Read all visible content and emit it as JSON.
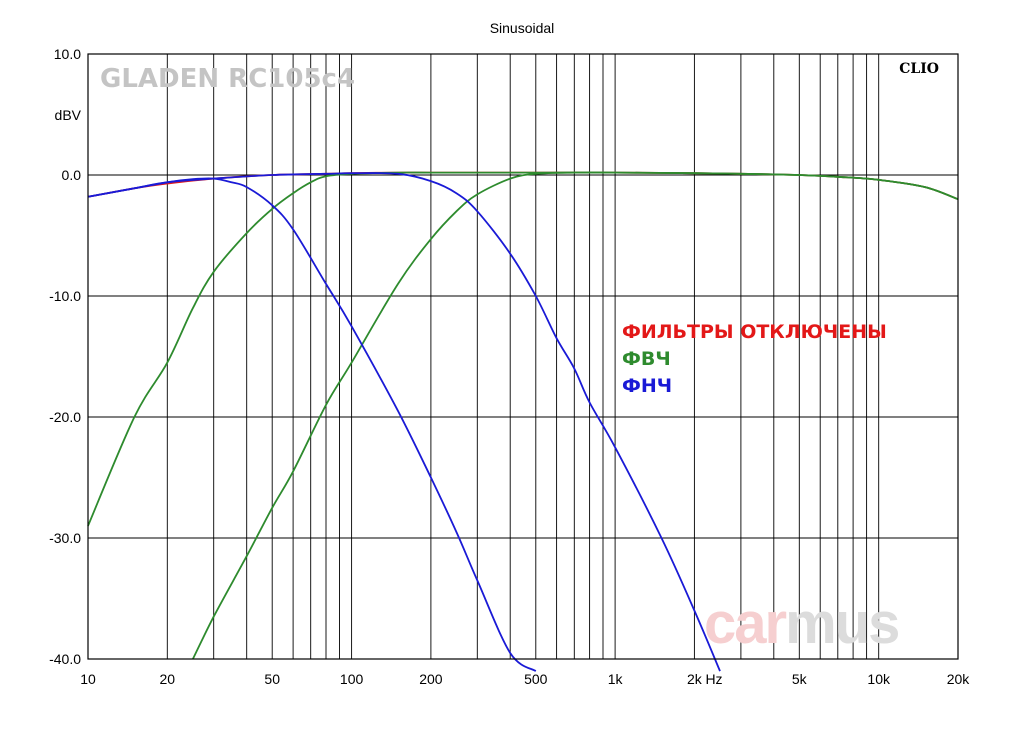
{
  "chart_data": {
    "type": "line",
    "title": "Sinusoidal",
    "ylabel": "dBV",
    "x_unit_label": "Hz",
    "x_scale": "log",
    "xlim": [
      10,
      20000
    ],
    "ylim": [
      -40,
      10
    ],
    "grid": true,
    "legend_placement": "middle-right",
    "y_ticks": [
      {
        "value": 10,
        "label": "10.0"
      },
      {
        "value": 0,
        "label": "0.0"
      },
      {
        "value": -10,
        "label": "-10.0"
      },
      {
        "value": -20,
        "label": "-20.0"
      },
      {
        "value": -30,
        "label": "-30.0"
      },
      {
        "value": -40,
        "label": "-40.0"
      }
    ],
    "x_ticks": [
      {
        "value": 10,
        "label": "10"
      },
      {
        "value": 20,
        "label": "20"
      },
      {
        "value": 50,
        "label": "50"
      },
      {
        "value": 100,
        "label": "100"
      },
      {
        "value": 200,
        "label": "200"
      },
      {
        "value": 500,
        "label": "500"
      },
      {
        "value": 1000,
        "label": "1k"
      },
      {
        "value": 2000,
        "label": "2k"
      },
      {
        "value": 5000,
        "label": "5k"
      },
      {
        "value": 10000,
        "label": "10k"
      },
      {
        "value": 20000,
        "label": "20k"
      }
    ],
    "x_gridlines": [
      20,
      30,
      40,
      50,
      60,
      70,
      80,
      90,
      100,
      200,
      300,
      400,
      500,
      600,
      700,
      800,
      900,
      1000,
      2000,
      3000,
      4000,
      5000,
      6000,
      7000,
      8000,
      9000,
      10000
    ],
    "series": [
      {
        "name": "ФИЛЬТРЫ ОТКЛЮЧЕНЫ",
        "color": "#e31818",
        "x": [
          10,
          15,
          20,
          30,
          50,
          80,
          100,
          150,
          200,
          300,
          500,
          1000,
          2000,
          3000,
          5000,
          7000,
          10000,
          15000,
          20000
        ],
        "y": [
          -1.8,
          -1.1,
          -0.7,
          -0.3,
          0.0,
          0.1,
          0.15,
          0.2,
          0.2,
          0.2,
          0.2,
          0.2,
          0.15,
          0.1,
          0.0,
          -0.15,
          -0.4,
          -1.0,
          -2.0
        ]
      },
      {
        "name": "ФВЧ",
        "color": "#2e8b2e",
        "x": [
          10,
          15,
          20,
          25,
          30,
          40,
          50,
          60,
          70,
          80,
          100,
          150,
          200,
          300,
          500,
          1000,
          2000,
          3000,
          5000,
          7000,
          10000,
          15000,
          20000
        ],
        "y": [
          -29,
          -20,
          -15.5,
          -11,
          -8,
          -4.8,
          -2.8,
          -1.5,
          -0.6,
          -0.1,
          0.1,
          0.2,
          0.2,
          0.2,
          0.2,
          0.2,
          0.15,
          0.1,
          0.0,
          -0.15,
          -0.4,
          -1.0,
          -2.0
        ]
      },
      {
        "name": "ФВЧ",
        "color": "#2e8b2e",
        "x": [
          25,
          30,
          40,
          50,
          60,
          80,
          100,
          150,
          200,
          250,
          300,
          400,
          500,
          700,
          1000,
          2000,
          3000,
          5000,
          7000,
          10000,
          15000,
          20000
        ],
        "y": [
          -40,
          -36.5,
          -31.5,
          -27.5,
          -24.5,
          -19,
          -15.5,
          -9,
          -5.3,
          -3,
          -1.6,
          -0.3,
          0.1,
          0.2,
          0.2,
          0.15,
          0.1,
          0.0,
          -0.15,
          -0.4,
          -1.0,
          -2.0
        ]
      },
      {
        "name": "ФНЧ",
        "color": "#1a1ad6",
        "x": [
          10,
          15,
          20,
          25,
          30,
          35,
          40,
          50,
          60,
          80,
          100,
          150,
          200,
          250,
          300,
          400,
          500
        ],
        "y": [
          -1.8,
          -1.1,
          -0.6,
          -0.35,
          -0.3,
          -0.6,
          -1.0,
          -2.5,
          -4.5,
          -9,
          -12.5,
          -19.5,
          -25,
          -29.5,
          -33.5,
          -39.5,
          -41
        ]
      },
      {
        "name": "ФНЧ",
        "color": "#1a1ad6",
        "x": [
          10,
          15,
          20,
          30,
          50,
          80,
          100,
          150,
          200,
          250,
          300,
          400,
          500,
          600,
          700,
          800,
          1000,
          1500,
          2000,
          2500
        ],
        "y": [
          -1.8,
          -1.1,
          -0.6,
          -0.3,
          0.0,
          0.1,
          0.15,
          0.1,
          -0.5,
          -1.5,
          -3,
          -6.5,
          -10,
          -13.5,
          -16,
          -18.8,
          -22.5,
          -30,
          -36,
          -41
        ]
      }
    ],
    "legend": [
      {
        "label": "ФИЛЬТРЫ ОТКЛЮЧЕНЫ",
        "color": "#e31818"
      },
      {
        "label": "ФВЧ",
        "color": "#2e8b2e"
      },
      {
        "label": "ФНЧ",
        "color": "#1a1ad6"
      }
    ]
  },
  "branding": {
    "model_label": "GLADEN RC105c4",
    "software_label": "CLIO",
    "watermark": "carmus",
    "watermark_colors": [
      "#f6cfd0",
      "#dcdcdc"
    ]
  }
}
